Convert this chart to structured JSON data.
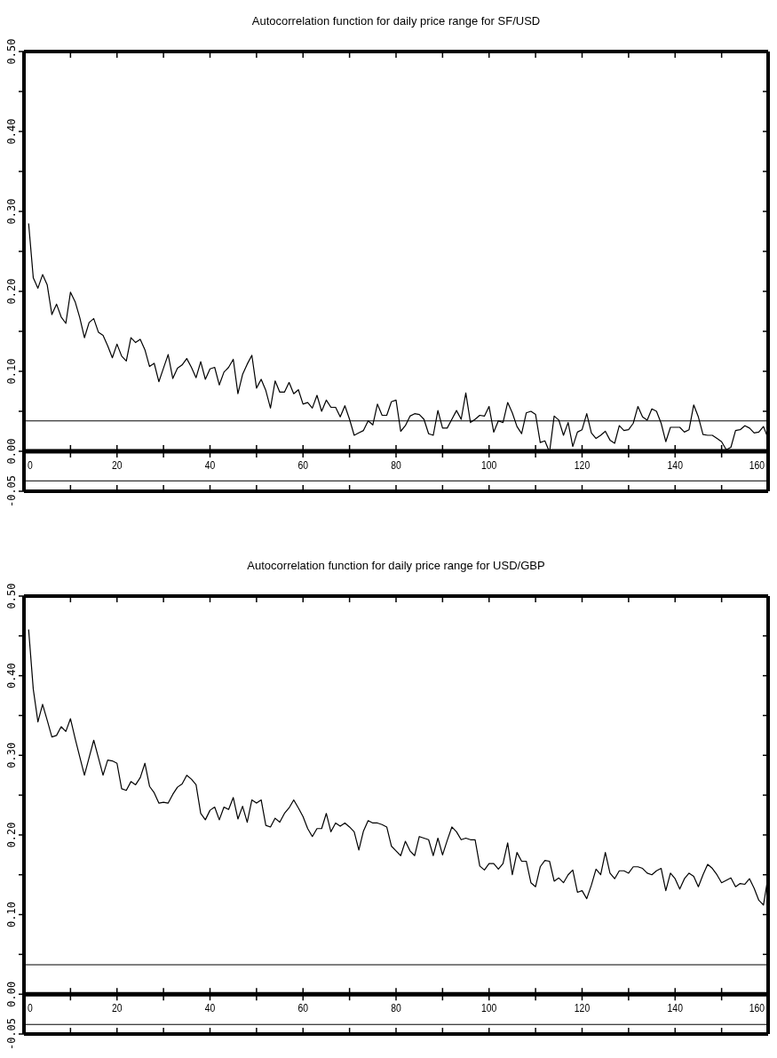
{
  "chart_data": [
    {
      "type": "line",
      "title": "Autocorrelation function for daily price range for SF/USD",
      "x": [
        1,
        2,
        3,
        4,
        5,
        6,
        7,
        8,
        9,
        10,
        11,
        12,
        13,
        14,
        15,
        16,
        17,
        18,
        19,
        20,
        21,
        22,
        23,
        24,
        25,
        26,
        27,
        28,
        29,
        30,
        31,
        32,
        33,
        34,
        35,
        36,
        37,
        38,
        39,
        40,
        41,
        42,
        43,
        44,
        45,
        46,
        47,
        48,
        49,
        50,
        51,
        52,
        53,
        54,
        55,
        56,
        57,
        58,
        59,
        60,
        61,
        62,
        63,
        64,
        65,
        66,
        67,
        68,
        69,
        70,
        71,
        72,
        73,
        74,
        75,
        76,
        77,
        78,
        79,
        80,
        81,
        82,
        83,
        84,
        85,
        86,
        87,
        88,
        89,
        90,
        91,
        92,
        93,
        94,
        95,
        96,
        97,
        98,
        99,
        100,
        101,
        102,
        103,
        104,
        105,
        106,
        107,
        108,
        109,
        110,
        111,
        112,
        113,
        114,
        115,
        116,
        117,
        118,
        119,
        120,
        121,
        122,
        123,
        124,
        125,
        126,
        127,
        128,
        129,
        130,
        131,
        132,
        133,
        134,
        135,
        136,
        137,
        138,
        139,
        140,
        141,
        142,
        143,
        144,
        145,
        146,
        147,
        148,
        149,
        150,
        151,
        152,
        153,
        154,
        155,
        156,
        157,
        158,
        159,
        160
      ],
      "series": [
        {
          "color": "#000000",
          "values": [
            0.285,
            0.217,
            0.204,
            0.221,
            0.208,
            0.171,
            0.184,
            0.168,
            0.16,
            0.199,
            0.187,
            0.167,
            0.142,
            0.161,
            0.166,
            0.149,
            0.145,
            0.132,
            0.117,
            0.134,
            0.119,
            0.113,
            0.142,
            0.136,
            0.14,
            0.127,
            0.106,
            0.11,
            0.087,
            0.104,
            0.121,
            0.091,
            0.104,
            0.108,
            0.116,
            0.105,
            0.092,
            0.112,
            0.09,
            0.103,
            0.105,
            0.083,
            0.099,
            0.105,
            0.115,
            0.072,
            0.096,
            0.109,
            0.12,
            0.079,
            0.09,
            0.076,
            0.054,
            0.088,
            0.074,
            0.074,
            0.086,
            0.072,
            0.077,
            0.059,
            0.061,
            0.054,
            0.07,
            0.05,
            0.064,
            0.055,
            0.055,
            0.043,
            0.057,
            0.04,
            0.02,
            0.023,
            0.026,
            0.038,
            0.033,
            0.059,
            0.045,
            0.045,
            0.062,
            0.064,
            0.025,
            0.032,
            0.044,
            0.047,
            0.046,
            0.04,
            0.022,
            0.02,
            0.051,
            0.029,
            0.029,
            0.04,
            0.051,
            0.04,
            0.073,
            0.036,
            0.04,
            0.045,
            0.044,
            0.056,
            0.024,
            0.038,
            0.036,
            0.061,
            0.048,
            0.031,
            0.022,
            0.048,
            0.05,
            0.046,
            0.011,
            0.013,
            -0.001,
            0.044,
            0.039,
            0.02,
            0.036,
            0.006,
            0.024,
            0.027,
            0.047,
            0.023,
            0.016,
            0.02,
            0.025,
            0.014,
            0.01,
            0.032,
            0.026,
            0.027,
            0.035,
            0.056,
            0.043,
            0.039,
            0.053,
            0.05,
            0.035,
            0.012,
            0.03,
            0.03,
            0.03,
            0.024,
            0.027,
            0.058,
            0.043,
            0.021,
            0.02,
            0.02,
            0.016,
            0.012,
            0.002,
            0.005,
            0.026,
            0.027,
            0.032,
            0.029,
            0.023,
            0.024,
            0.031,
            0.016
          ]
        }
      ],
      "xlim": [
        0,
        160
      ],
      "xticks": [
        0,
        {
          "value": 10,
          "label": null
        },
        20,
        {
          "value": 30,
          "label": null
        },
        40,
        {
          "value": 50,
          "label": null
        },
        60,
        {
          "value": 70,
          "label": null
        },
        80,
        {
          "value": 90,
          "label": null
        },
        100,
        {
          "value": 110,
          "label": null
        },
        120,
        {
          "value": 130,
          "label": null
        },
        140,
        {
          "value": 150,
          "label": null
        },
        160
      ],
      "ylim": [
        -0.05,
        0.5
      ],
      "yticks": [
        {
          "value": -0.05,
          "label": "-0.05"
        },
        {
          "value": 0,
          "label": "0.00"
        },
        {
          "value": 0.05,
          "label": null
        },
        {
          "value": 0.1,
          "label": "0.10"
        },
        {
          "value": 0.15,
          "label": null
        },
        {
          "value": 0.2,
          "label": "0.20"
        },
        {
          "value": 0.25,
          "label": null
        },
        {
          "value": 0.3,
          "label": "0.30"
        },
        {
          "value": 0.35,
          "label": null
        },
        {
          "value": 0.4,
          "label": "0.40"
        },
        {
          "value": 0.45,
          "label": null
        },
        {
          "value": 0.5,
          "label": "0.50"
        }
      ],
      "ref_lines": [
        {
          "axis": "y",
          "value": 0.038
        },
        {
          "axis": "y",
          "value": -0.037
        }
      ]
    },
    {
      "type": "line",
      "title": "Autocorrelation function for daily price range for USD/GBP",
      "x": [
        1,
        2,
        3,
        4,
        5,
        6,
        7,
        8,
        9,
        10,
        11,
        12,
        13,
        14,
        15,
        16,
        17,
        18,
        19,
        20,
        21,
        22,
        23,
        24,
        25,
        26,
        27,
        28,
        29,
        30,
        31,
        32,
        33,
        34,
        35,
        36,
        37,
        38,
        39,
        40,
        41,
        42,
        43,
        44,
        45,
        46,
        47,
        48,
        49,
        50,
        51,
        52,
        53,
        54,
        55,
        56,
        57,
        58,
        59,
        60,
        61,
        62,
        63,
        64,
        65,
        66,
        67,
        68,
        69,
        70,
        71,
        72,
        73,
        74,
        75,
        76,
        77,
        78,
        79,
        80,
        81,
        82,
        83,
        84,
        85,
        86,
        87,
        88,
        89,
        90,
        91,
        92,
        93,
        94,
        95,
        96,
        97,
        98,
        99,
        100,
        101,
        102,
        103,
        104,
        105,
        106,
        107,
        108,
        109,
        110,
        111,
        112,
        113,
        114,
        115,
        116,
        117,
        118,
        119,
        120,
        121,
        122,
        123,
        124,
        125,
        126,
        127,
        128,
        129,
        130,
        131,
        132,
        133,
        134,
        135,
        136,
        137,
        138,
        139,
        140,
        141,
        142,
        143,
        144,
        145,
        146,
        147,
        148,
        149,
        150,
        151,
        152,
        153,
        154,
        155,
        156,
        157,
        158,
        159,
        160
      ],
      "series": [
        {
          "color": "#000000",
          "values": [
            0.458,
            0.383,
            0.342,
            0.364,
            0.344,
            0.323,
            0.325,
            0.336,
            0.33,
            0.346,
            0.321,
            0.298,
            0.275,
            0.297,
            0.319,
            0.297,
            0.275,
            0.294,
            0.293,
            0.29,
            0.258,
            0.256,
            0.267,
            0.263,
            0.272,
            0.29,
            0.261,
            0.253,
            0.24,
            0.241,
            0.24,
            0.251,
            0.26,
            0.264,
            0.275,
            0.27,
            0.263,
            0.227,
            0.219,
            0.231,
            0.235,
            0.219,
            0.235,
            0.232,
            0.247,
            0.22,
            0.236,
            0.216,
            0.244,
            0.24,
            0.244,
            0.212,
            0.21,
            0.221,
            0.216,
            0.227,
            0.234,
            0.244,
            0.234,
            0.223,
            0.208,
            0.198,
            0.208,
            0.208,
            0.227,
            0.204,
            0.215,
            0.211,
            0.215,
            0.21,
            0.204,
            0.181,
            0.205,
            0.218,
            0.215,
            0.215,
            0.213,
            0.21,
            0.186,
            0.18,
            0.174,
            0.192,
            0.18,
            0.174,
            0.198,
            0.196,
            0.194,
            0.174,
            0.196,
            0.175,
            0.193,
            0.21,
            0.204,
            0.194,
            0.196,
            0.194,
            0.194,
            0.161,
            0.156,
            0.164,
            0.164,
            0.157,
            0.164,
            0.19,
            0.15,
            0.178,
            0.167,
            0.167,
            0.14,
            0.135,
            0.16,
            0.168,
            0.167,
            0.142,
            0.146,
            0.14,
            0.15,
            0.156,
            0.128,
            0.13,
            0.12,
            0.137,
            0.157,
            0.15,
            0.178,
            0.152,
            0.145,
            0.155,
            0.155,
            0.152,
            0.16,
            0.16,
            0.158,
            0.152,
            0.15,
            0.155,
            0.158,
            0.13,
            0.152,
            0.145,
            0.132,
            0.145,
            0.152,
            0.148,
            0.135,
            0.15,
            0.163,
            0.158,
            0.15,
            0.14,
            0.143,
            0.146,
            0.135,
            0.139,
            0.138,
            0.145,
            0.133,
            0.118,
            0.112,
            0.148
          ]
        }
      ],
      "xlim": [
        0,
        160
      ],
      "xticks": [
        0,
        {
          "value": 10,
          "label": null
        },
        20,
        {
          "value": 30,
          "label": null
        },
        40,
        {
          "value": 50,
          "label": null
        },
        60,
        {
          "value": 70,
          "label": null
        },
        80,
        {
          "value": 90,
          "label": null
        },
        100,
        {
          "value": 110,
          "label": null
        },
        120,
        {
          "value": 130,
          "label": null
        },
        140,
        {
          "value": 150,
          "label": null
        },
        160
      ],
      "ylim": [
        -0.05,
        0.5
      ],
      "yticks": [
        {
          "value": -0.05,
          "label": "-0.05"
        },
        {
          "value": 0,
          "label": "0.00"
        },
        {
          "value": 0.05,
          "label": null
        },
        {
          "value": 0.1,
          "label": "0.10"
        },
        {
          "value": 0.15,
          "label": null
        },
        {
          "value": 0.2,
          "label": "0.20"
        },
        {
          "value": 0.25,
          "label": null
        },
        {
          "value": 0.3,
          "label": "0.30"
        },
        {
          "value": 0.35,
          "label": null
        },
        {
          "value": 0.4,
          "label": "0.40"
        },
        {
          "value": 0.45,
          "label": null
        },
        {
          "value": 0.5,
          "label": "0.50"
        }
      ],
      "ref_lines": [
        {
          "axis": "y",
          "value": 0.037
        },
        {
          "axis": "y",
          "value": -0.038
        }
      ]
    }
  ]
}
